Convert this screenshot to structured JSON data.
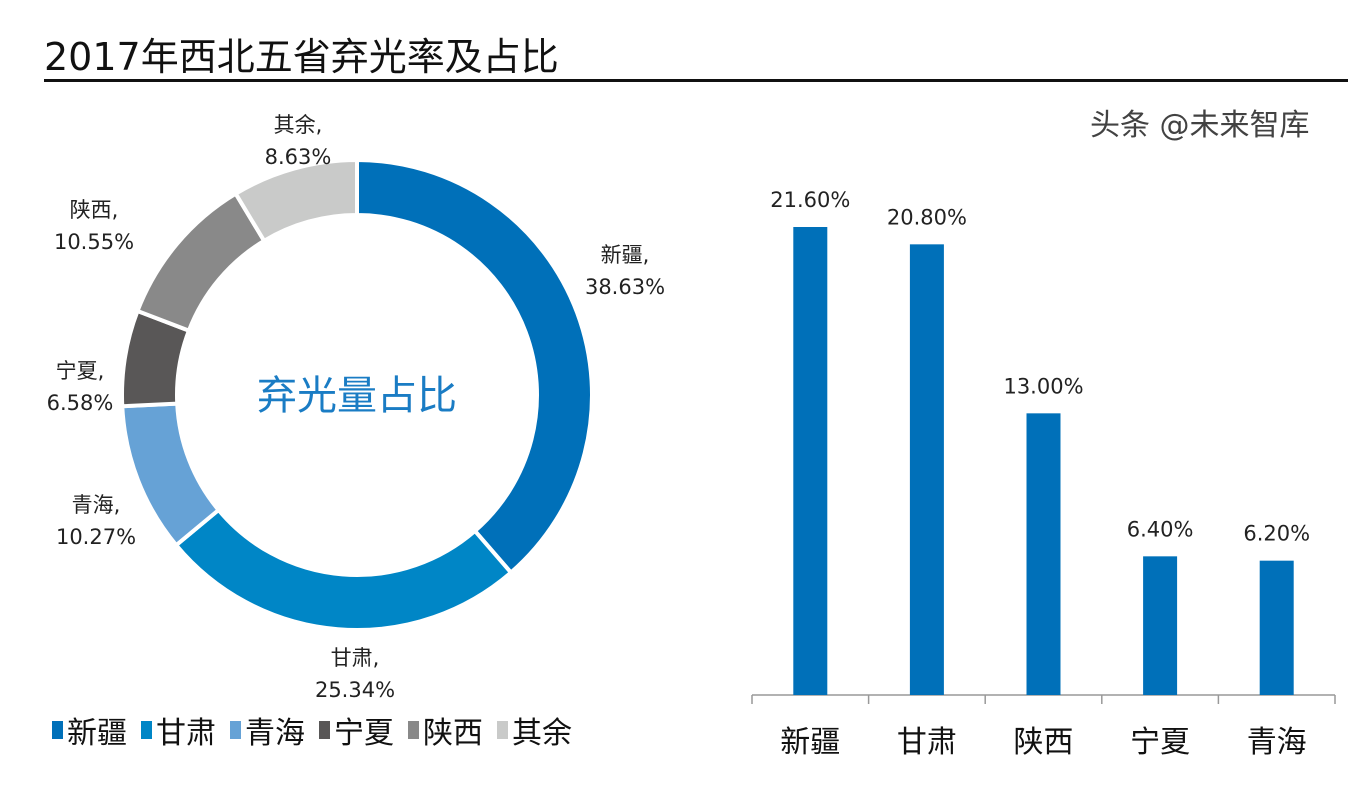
{
  "title": "2017年西北五省弃光率及占比",
  "watermark": "头条 @未来智库",
  "chart_data": [
    {
      "type": "pie",
      "variant": "donut",
      "center_label": "弃光量占比",
      "categories": [
        "新疆",
        "甘肃",
        "青海",
        "宁夏",
        "陕西",
        "其余"
      ],
      "values": [
        38.63,
        25.34,
        10.27,
        6.58,
        10.55,
        8.63
      ],
      "data_labels": [
        "38.63%",
        "25.34%",
        "10.27%",
        "6.58%",
        "10.55%",
        "8.63%"
      ],
      "colors": [
        "#0070b9",
        "#0086c6",
        "#66a2d6",
        "#595757",
        "#898989",
        "#c9cac9"
      ],
      "legend": [
        "新疆",
        "甘肃",
        "青海",
        "宁夏",
        "陕西",
        "其余"
      ],
      "legend_position": "bottom"
    },
    {
      "type": "bar",
      "categories": [
        "新疆",
        "甘肃",
        "陕西",
        "宁夏",
        "青海"
      ],
      "values": [
        21.6,
        20.8,
        13.0,
        6.4,
        6.2
      ],
      "data_labels": [
        "21.60%",
        "20.80%",
        "13.00%",
        "6.40%",
        "6.20%"
      ],
      "color": "#0070b9",
      "ylim": [
        0,
        22
      ],
      "grid": false,
      "y_axis_visible": false
    }
  ]
}
